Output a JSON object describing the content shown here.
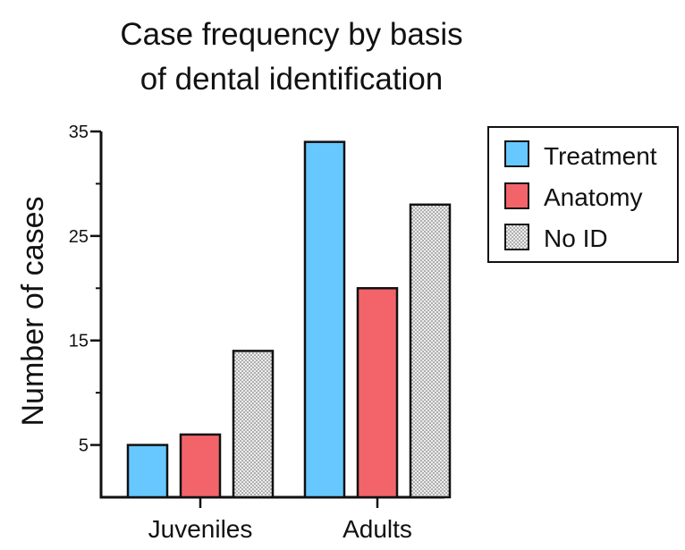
{
  "chart_data": {
    "type": "bar",
    "title_lines": [
      "Case frequency by basis",
      "of dental identification"
    ],
    "xlabel": "",
    "ylabel": "Number of cases",
    "categories": [
      "Juveniles",
      "Adults"
    ],
    "series": [
      {
        "name": "Treatment",
        "values": [
          5,
          34
        ],
        "color": "#66c8ff",
        "pattern": "solid"
      },
      {
        "name": "Anatomy",
        "values": [
          6,
          20
        ],
        "color": "#f2646a",
        "pattern": "solid"
      },
      {
        "name": "No ID",
        "values": [
          14,
          28
        ],
        "color": "#e8e8e8",
        "pattern": "dots"
      }
    ],
    "ylim": [
      0,
      35
    ],
    "y_ticks_major": [
      5,
      15,
      25,
      35
    ],
    "y_ticks_minor": [
      10,
      20,
      30
    ],
    "grid": false,
    "legend_position": "right"
  }
}
